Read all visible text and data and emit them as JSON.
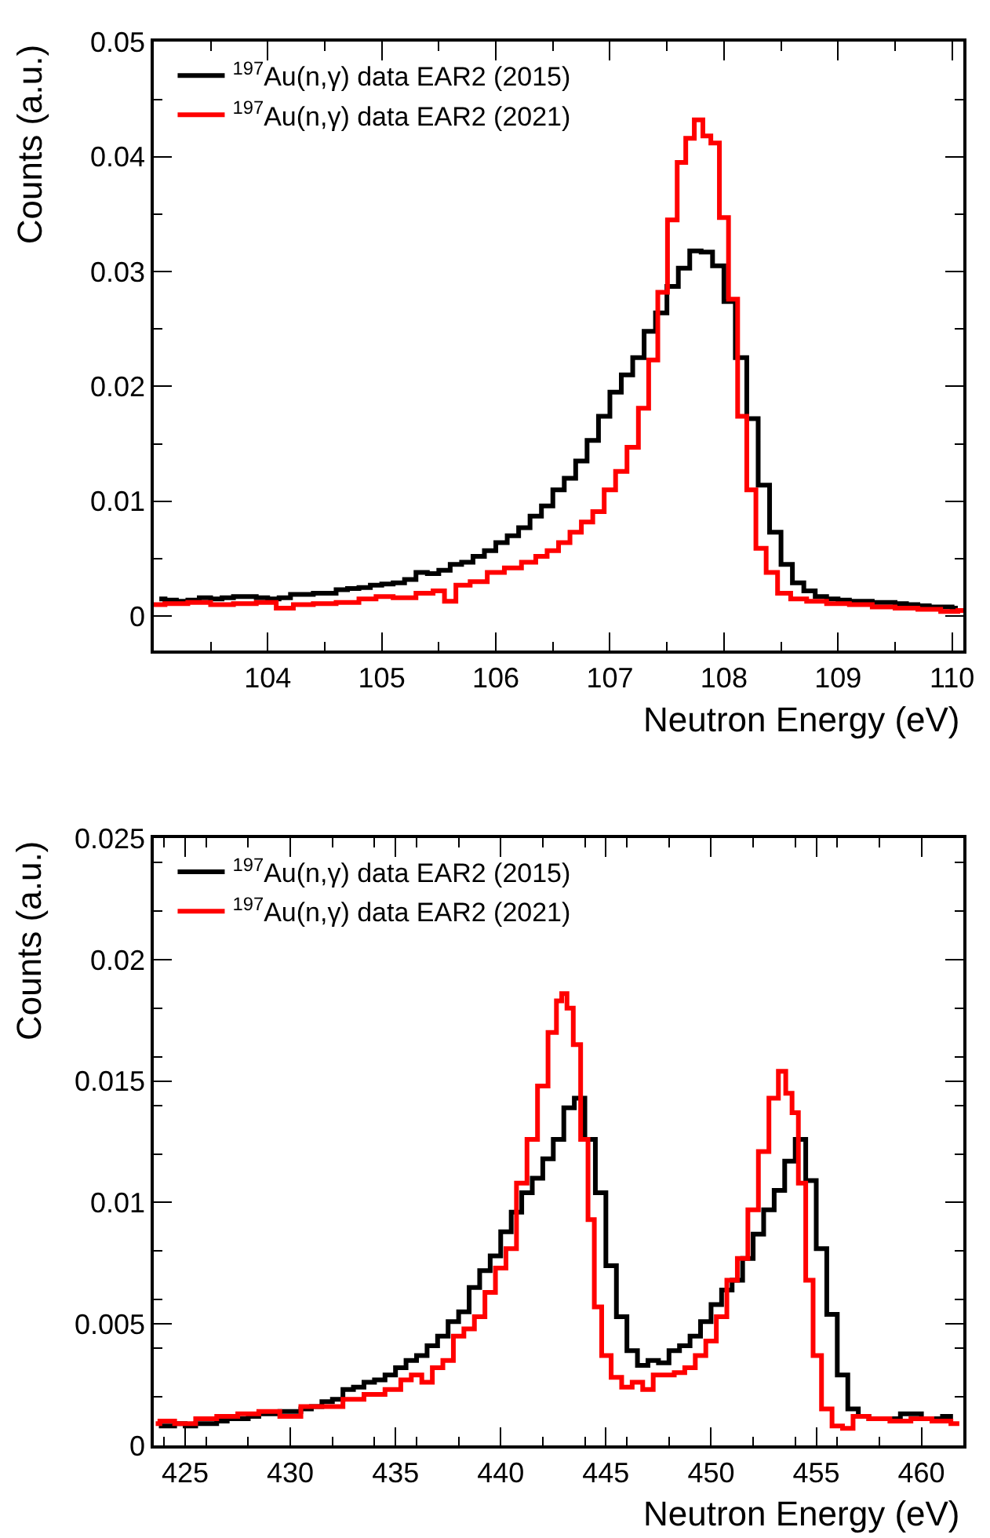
{
  "chart_data": [
    {
      "type": "step",
      "xlabel": "Neutron Energy (eV)",
      "ylabel": "Counts (a.u.)",
      "xlim": [
        103,
        110.1
      ],
      "xticks": [
        104,
        105,
        106,
        107,
        108,
        109,
        110
      ],
      "ylim": [
        -0.003,
        0.05
      ],
      "yticks": [
        0,
        0.01,
        0.02,
        0.03,
        0.04,
        0.05
      ],
      "legend": "top left",
      "line_style": "solid",
      "marker": "none",
      "series": [
        {
          "name": "$^{197}$Au(n,γ) data EAR2 (2015)",
          "color": "#000000",
          "x": [
            103.05,
            103.15,
            103.25,
            103.35,
            103.45,
            103.55,
            103.65,
            103.75,
            103.85,
            103.95,
            104.05,
            104.15,
            104.25,
            104.35,
            104.45,
            104.55,
            104.65,
            104.75,
            104.85,
            104.95,
            105.05,
            105.15,
            105.25,
            105.35,
            105.45,
            105.55,
            105.65,
            105.75,
            105.85,
            105.95,
            106.05,
            106.15,
            106.25,
            106.35,
            106.45,
            106.55,
            106.65,
            106.75,
            106.85,
            106.95,
            107.05,
            107.15,
            107.25,
            107.35,
            107.45,
            107.55,
            107.65,
            107.75,
            107.85,
            107.95,
            108.05,
            108.15,
            108.25,
            108.35,
            108.45,
            108.55,
            108.65,
            108.75,
            108.85,
            108.95,
            109.05,
            109.15,
            109.25,
            109.35,
            109.45,
            109.55,
            109.65,
            109.75,
            109.85,
            109.95,
            110.05
          ],
          "values": [
            0.0015,
            0.0014,
            0.0013,
            0.0014,
            0.0016,
            0.0015,
            0.0016,
            0.0017,
            0.0017,
            0.0016,
            0.0015,
            0.0016,
            0.0019,
            0.0019,
            0.002,
            0.002,
            0.0023,
            0.0024,
            0.0025,
            0.0027,
            0.0028,
            0.0029,
            0.0032,
            0.0038,
            0.0037,
            0.004,
            0.0045,
            0.0047,
            0.0052,
            0.0057,
            0.0064,
            0.007,
            0.0077,
            0.0087,
            0.0096,
            0.011,
            0.012,
            0.0135,
            0.0153,
            0.0174,
            0.0195,
            0.021,
            0.0225,
            0.0248,
            0.0264,
            0.0287,
            0.0303,
            0.0318,
            0.0317,
            0.0305,
            0.0274,
            0.0225,
            0.0172,
            0.0114,
            0.0073,
            0.0045,
            0.0029,
            0.0022,
            0.0017,
            0.0015,
            0.0014,
            0.0013,
            0.0013,
            0.0012,
            0.0012,
            0.0011,
            0.001,
            0.0009,
            0.0008,
            0.0008,
            0.0007
          ]
        },
        {
          "name": "$^{197}$Au(n,γ) data EAR2 (2021)",
          "color": "#ff0000",
          "x": [
            103.0,
            103.2,
            103.4,
            103.6,
            103.8,
            104.0,
            104.15,
            104.3,
            104.5,
            104.7,
            104.9,
            105.0,
            105.2,
            105.4,
            105.5,
            105.6,
            105.7,
            105.85,
            106.0,
            106.15,
            106.3,
            106.4,
            106.5,
            106.6,
            106.7,
            106.8,
            106.9,
            107.0,
            107.1,
            107.2,
            107.3,
            107.38,
            107.46,
            107.55,
            107.63,
            107.7,
            107.78,
            107.85,
            107.92,
            108.0,
            108.08,
            108.16,
            108.24,
            108.32,
            108.42,
            108.52,
            108.65,
            108.8,
            109.0,
            109.2,
            109.4,
            109.6,
            109.8,
            110.0,
            110.1
          ],
          "values": [
            0.001,
            0.0011,
            0.0012,
            0.001,
            0.0011,
            0.0012,
            0.0007,
            0.001,
            0.0011,
            0.0012,
            0.0015,
            0.0017,
            0.0016,
            0.002,
            0.0022,
            0.0013,
            0.0027,
            0.003,
            0.0038,
            0.0042,
            0.0047,
            0.0052,
            0.0057,
            0.0064,
            0.0073,
            0.0082,
            0.0091,
            0.011,
            0.0126,
            0.0147,
            0.0181,
            0.0223,
            0.0282,
            0.0345,
            0.0395,
            0.0416,
            0.0432,
            0.0418,
            0.0412,
            0.0347,
            0.0276,
            0.0174,
            0.011,
            0.0059,
            0.0038,
            0.002,
            0.0015,
            0.0013,
            0.0011,
            0.001,
            0.0008,
            0.0007,
            0.0006,
            0.0004,
            0.0005
          ]
        }
      ]
    },
    {
      "type": "step",
      "xlabel": "Neutron Energy (eV)",
      "ylabel": "Counts (a.u.)",
      "xlim": [
        423.5,
        462
      ],
      "xticks": [
        425,
        430,
        435,
        440,
        445,
        450,
        455,
        460
      ],
      "ylim": [
        0,
        0.025
      ],
      "yticks": [
        0,
        0.005,
        0.01,
        0.015,
        0.02,
        0.025
      ],
      "legend": "top left",
      "line_style": "solid",
      "marker": "none",
      "series": [
        {
          "name": "$^{197}$Au(n,γ) data EAR2 (2015)",
          "color": "#000000",
          "x": [
            423.75,
            424.25,
            424.75,
            425.25,
            425.75,
            426.25,
            426.75,
            427.25,
            427.75,
            428.25,
            428.75,
            429.25,
            429.75,
            430.25,
            430.75,
            431.25,
            431.75,
            432.25,
            432.75,
            433.25,
            433.75,
            434.25,
            434.75,
            435.25,
            435.75,
            436.25,
            436.75,
            437.25,
            437.75,
            438.25,
            438.75,
            439.25,
            439.75,
            440.25,
            440.75,
            441.25,
            441.75,
            442.25,
            442.75,
            443.25,
            443.75,
            444.25,
            444.75,
            445.25,
            445.75,
            446.25,
            446.75,
            447.25,
            447.75,
            448.25,
            448.75,
            449.25,
            449.75,
            450.25,
            450.75,
            451.25,
            451.75,
            452.25,
            452.75,
            453.25,
            453.75,
            454.25,
            454.75,
            455.25,
            455.75,
            456.25,
            456.75,
            457.25,
            457.75,
            458.5,
            459.5,
            460.5,
            461.5
          ],
          "values": [
            0.0008,
            0.0008,
            0.0009,
            0.0008,
            0.0009,
            0.0009,
            0.001,
            0.0011,
            0.0011,
            0.0012,
            0.0013,
            0.0013,
            0.0014,
            0.0014,
            0.0015,
            0.0016,
            0.0018,
            0.0019,
            0.0023,
            0.0024,
            0.0026,
            0.0027,
            0.0029,
            0.0032,
            0.0035,
            0.0037,
            0.0041,
            0.0045,
            0.0051,
            0.0055,
            0.0065,
            0.0072,
            0.0078,
            0.0088,
            0.0096,
            0.0104,
            0.011,
            0.0118,
            0.0126,
            0.0139,
            0.0143,
            0.0126,
            0.0104,
            0.0074,
            0.0053,
            0.0039,
            0.0033,
            0.0035,
            0.0034,
            0.0039,
            0.0041,
            0.0045,
            0.0051,
            0.0058,
            0.0064,
            0.0068,
            0.0077,
            0.0087,
            0.0097,
            0.0105,
            0.0117,
            0.0126,
            0.0109,
            0.0081,
            0.0054,
            0.0029,
            0.0015,
            0.0012,
            0.0011,
            0.0011,
            0.0013,
            0.0011,
            0.0012
          ]
        },
        {
          "name": "$^{197}$Au(n,γ) data EAR2 (2021)",
          "color": "#ff0000",
          "x": [
            423.6,
            424.0,
            425.0,
            426.0,
            427.0,
            428.0,
            429.0,
            430.0,
            431.0,
            432.0,
            433.0,
            434.0,
            435.0,
            435.5,
            436.0,
            436.5,
            437.0,
            437.5,
            438.0,
            438.5,
            439.0,
            439.5,
            440.0,
            440.5,
            441.0,
            441.5,
            442.0,
            442.5,
            442.8,
            443.0,
            443.3,
            443.6,
            444.0,
            444.3,
            444.6,
            445.0,
            445.5,
            446.0,
            446.5,
            447.0,
            447.5,
            448.0,
            448.5,
            449.0,
            449.5,
            450.0,
            450.5,
            451.0,
            451.5,
            452.0,
            452.5,
            453.0,
            453.4,
            453.7,
            454.0,
            454.3,
            454.7,
            455.0,
            455.5,
            456.0,
            456.5,
            457.0,
            458.0,
            459.0,
            460.0,
            461.0,
            461.8
          ],
          "values": [
            0.0009,
            0.001,
            0.0009,
            0.0011,
            0.0012,
            0.0013,
            0.0014,
            0.0012,
            0.0016,
            0.0016,
            0.0019,
            0.0021,
            0.0023,
            0.0027,
            0.0029,
            0.0026,
            0.0032,
            0.0035,
            0.0045,
            0.0048,
            0.0053,
            0.0063,
            0.0073,
            0.0081,
            0.0108,
            0.0126,
            0.0148,
            0.017,
            0.0183,
            0.0186,
            0.018,
            0.0165,
            0.0126,
            0.0093,
            0.0057,
            0.0037,
            0.0028,
            0.0024,
            0.0026,
            0.0023,
            0.0029,
            0.0029,
            0.003,
            0.0032,
            0.0037,
            0.0043,
            0.0053,
            0.0068,
            0.0077,
            0.0097,
            0.0121,
            0.0143,
            0.0154,
            0.0145,
            0.0137,
            0.0108,
            0.0068,
            0.0037,
            0.0015,
            0.0008,
            0.0007,
            0.0012,
            0.0011,
            0.001,
            0.0011,
            0.001,
            0.0009
          ]
        }
      ]
    }
  ]
}
